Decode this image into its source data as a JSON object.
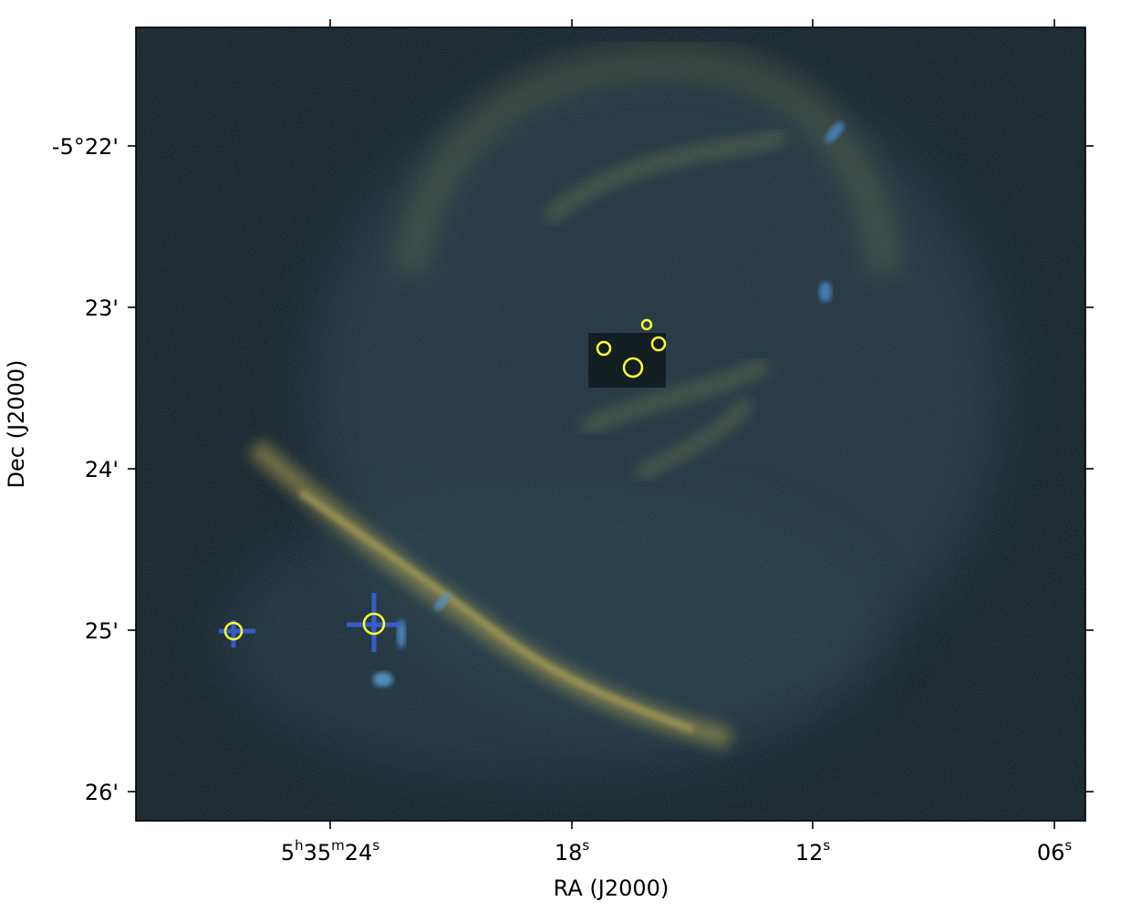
{
  "figure": {
    "xlabel": "RA (J2000)",
    "ylabel": "Dec (J2000)",
    "ra_ticks": [
      {
        "h": "5",
        "m": "35",
        "s": "24"
      },
      {
        "s": "18"
      },
      {
        "s": "12"
      },
      {
        "s": "06"
      }
    ],
    "dec_ticks": [
      "-5°22'",
      "23'",
      "24'",
      "25'",
      "26'"
    ],
    "source_marker_color": "#ffff33",
    "background_color": "#0d1a1f"
  }
}
